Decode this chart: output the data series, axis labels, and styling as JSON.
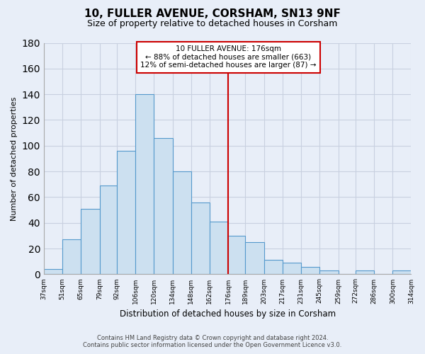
{
  "title": "10, FULLER AVENUE, CORSHAM, SN13 9NF",
  "subtitle": "Size of property relative to detached houses in Corsham",
  "xlabel": "Distribution of detached houses by size in Corsham",
  "ylabel": "Number of detached properties",
  "bar_color": "#cce0f0",
  "bar_edge_color": "#5599cc",
  "bins": [
    37,
    51,
    65,
    79,
    92,
    106,
    120,
    134,
    148,
    162,
    176,
    189,
    203,
    217,
    231,
    245,
    259,
    272,
    286,
    300,
    314
  ],
  "counts": [
    4,
    27,
    51,
    69,
    96,
    140,
    106,
    80,
    56,
    41,
    30,
    25,
    11,
    9,
    6,
    3,
    0,
    3,
    0,
    3
  ],
  "tick_labels": [
    "37sqm",
    "51sqm",
    "65sqm",
    "79sqm",
    "92sqm",
    "106sqm",
    "120sqm",
    "134sqm",
    "148sqm",
    "162sqm",
    "176sqm",
    "189sqm",
    "203sqm",
    "217sqm",
    "231sqm",
    "245sqm",
    "259sqm",
    "272sqm",
    "286sqm",
    "300sqm",
    "314sqm"
  ],
  "vline_x": 176,
  "vline_color": "#cc0000",
  "annotation_title": "10 FULLER AVENUE: 176sqm",
  "annotation_line1": "← 88% of detached houses are smaller (663)",
  "annotation_line2": "12% of semi-detached houses are larger (87) →",
  "annotation_box_facecolor": "#ffffff",
  "annotation_box_edgecolor": "#cc0000",
  "footer_line1": "Contains HM Land Registry data © Crown copyright and database right 2024.",
  "footer_line2": "Contains public sector information licensed under the Open Government Licence v3.0.",
  "background_color": "#e8eef8",
  "grid_color": "#c8d0e0",
  "ylim": [
    0,
    180
  ],
  "yticks": [
    0,
    20,
    40,
    60,
    80,
    100,
    120,
    140,
    160,
    180
  ]
}
